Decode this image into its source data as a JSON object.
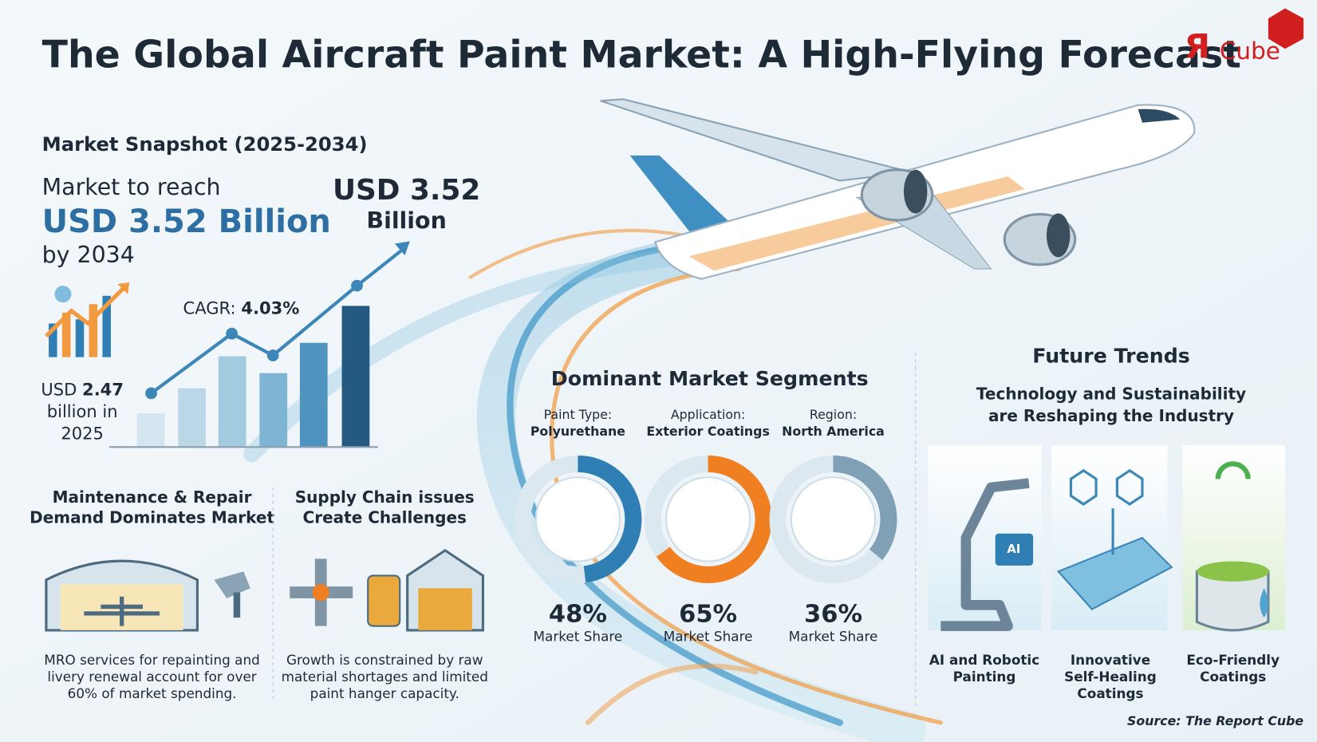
{
  "header": {
    "title_parts": [
      "The ",
      "Global Aircraft Paint Market",
      ": A High-Flying Forecast"
    ],
    "logo": [
      "Я",
      "Cube"
    ]
  },
  "snapshot": {
    "heading": "Market Snapshot (2025-2034)",
    "reach_line1": "Market to reach",
    "reach_value": "USD 3.52 Billion",
    "reach_line3": "by 2034",
    "end_label": [
      "USD 3.52",
      "Billion"
    ],
    "cagr_label": "CAGR:",
    "cagr_value": "4.03%",
    "start_label": [
      "USD ",
      "2.47",
      "billion in",
      "2025"
    ]
  },
  "cards": [
    {
      "title": [
        "Maintenance & Repair",
        "Demand Dominates Market"
      ],
      "text": [
        "MRO services for repainting and",
        "livery renewal account for over",
        "60% of market spending."
      ]
    },
    {
      "title": [
        "Supply Chain issues",
        "Create Challenges"
      ],
      "text": [
        "Growth is constrained by raw",
        "material shortages and limited",
        "paint hanger capacity."
      ]
    }
  ],
  "segments": {
    "heading": "Dominant Market Segments",
    "items": [
      {
        "category": "Paint Type:",
        "name": "Polyurethane",
        "share": 48,
        "share_label": "48%",
        "caption": "Market Share",
        "color": "#2f7fb5"
      },
      {
        "category": "Application:",
        "name": "Exterior Coatings",
        "share": 65,
        "share_label": "65%",
        "caption": "Market Share",
        "color": "#f07f22"
      },
      {
        "category": "Region:",
        "name": "North America",
        "share": 36,
        "share_label": "36%",
        "caption": "Market Share",
        "color": "#7fa0b5"
      }
    ]
  },
  "trends": {
    "heading": "Future Trends",
    "subheading": [
      "Technology and Sustainability",
      "are Reshaping the Industry"
    ],
    "icon_text": "AI",
    "items": [
      {
        "lines": [
          "AI and Robotic",
          "Painting"
        ]
      },
      {
        "lines": [
          "Innovative",
          "Self-Healing",
          "Coatings"
        ]
      },
      {
        "lines": [
          "Eco-Friendly",
          "Coatings"
        ]
      }
    ]
  },
  "source": "Source: The Report Cube"
}
